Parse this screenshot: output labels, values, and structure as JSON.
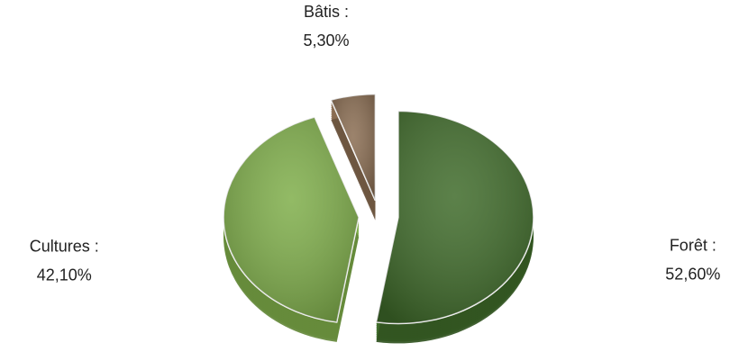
{
  "chart_data": {
    "type": "pie",
    "categories": [
      "Forêt :",
      "Cultures :",
      "Bâtis :"
    ],
    "values": [
      52.6,
      42.1,
      5.3
    ],
    "value_labels": [
      "52,60%",
      "42,10%",
      "5,30%"
    ],
    "colors": [
      "#3f6b2a",
      "#7fae4a",
      "#8a6d52"
    ],
    "exploded": true
  }
}
